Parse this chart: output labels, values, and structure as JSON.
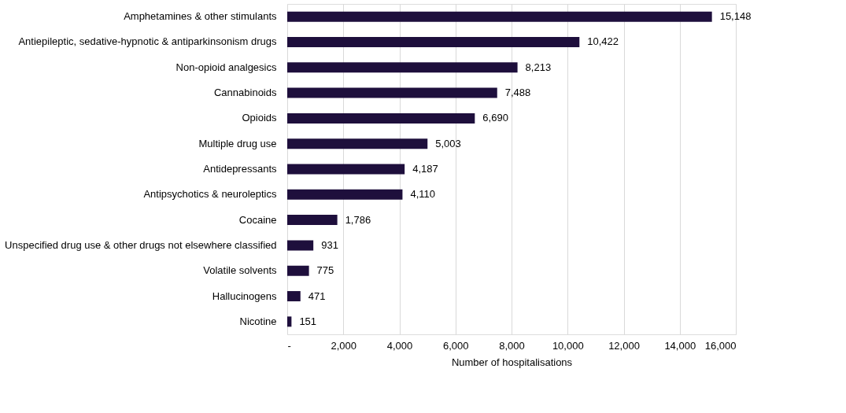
{
  "chart_data": {
    "type": "bar",
    "orientation": "horizontal",
    "xlabel": "Number of hospitalisations",
    "categories": [
      "Amphetamines & other stimulants",
      "Antiepileptic, sedative-hypnotic & antiparkinsonism drugs",
      "Non-opioid analgesics",
      "Cannabinoids",
      "Opioids",
      "Multiple drug use",
      "Antidepressants",
      "Antipsychotics & neuroleptics",
      "Cocaine",
      "Unspecified drug use & other drugs not elsewhere classified",
      "Volatile solvents",
      "Hallucinogens",
      "Nicotine"
    ],
    "values": [
      15148,
      10422,
      8213,
      7488,
      6690,
      5003,
      4187,
      4110,
      1786,
      931,
      775,
      471,
      151
    ],
    "color": "#1e0f3c",
    "xlim": [
      0,
      16000
    ],
    "xticks": [
      {
        "value": 0,
        "label": "-"
      },
      {
        "value": 2000,
        "label": "2,000"
      },
      {
        "value": 4000,
        "label": "4,000"
      },
      {
        "value": 6000,
        "label": "6,000"
      },
      {
        "value": 8000,
        "label": "8,000"
      },
      {
        "value": 10000,
        "label": "10,000"
      },
      {
        "value": 12000,
        "label": "12,000"
      },
      {
        "value": 14000,
        "label": "14,000"
      },
      {
        "value": 16000,
        "label": "16,000"
      }
    ],
    "grid": "x",
    "value_labels": [
      "15,148",
      "10,422",
      "8,213",
      "7,488",
      "6,690",
      "5,003",
      "4,187",
      "4,110",
      "1,786",
      "931",
      "775",
      "471",
      "151"
    ]
  }
}
